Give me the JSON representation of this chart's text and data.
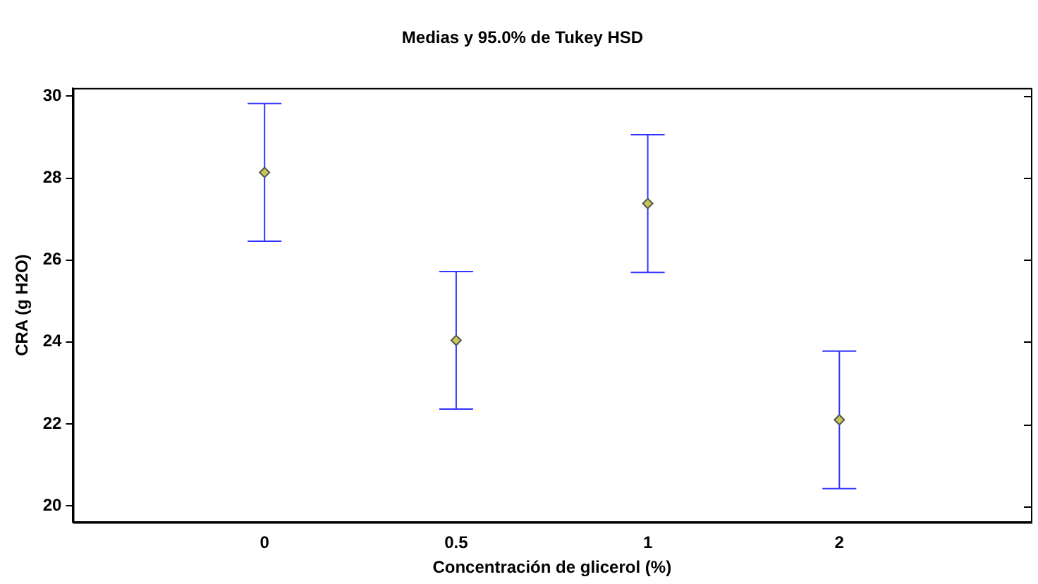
{
  "chart_data": {
    "type": "scatter",
    "title": "Medias y 95.0% de Tukey HSD",
    "xlabel": "Concentración de glicerol (%)",
    "ylabel": "CRA (g H2O)",
    "categories": [
      "0",
      "0.5",
      "1",
      "2"
    ],
    "series": [
      {
        "color": "#c8c850",
        "values": [
          28.14,
          24.04,
          27.38,
          22.1
        ],
        "errors": [
          1.68,
          1.68,
          1.68,
          1.68
        ]
      }
    ],
    "ylim": [
      19.6,
      30.2
    ],
    "yticks": [
      20,
      22,
      24,
      26,
      28,
      30
    ],
    "grid": false,
    "legend": false,
    "marker": "diamond"
  }
}
